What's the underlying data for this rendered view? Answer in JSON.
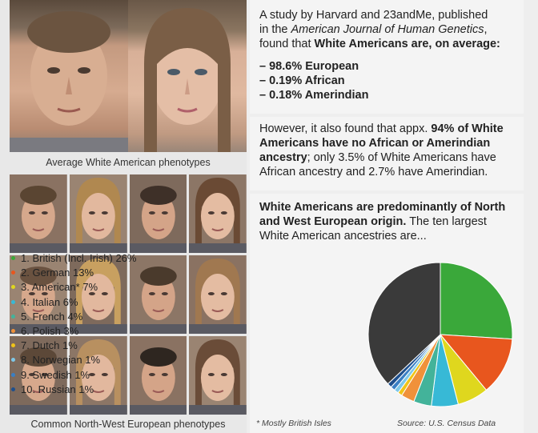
{
  "left": {
    "top_caption": "Average White American phenotypes",
    "bottom_caption": "Common North-West European phenotypes"
  },
  "study": {
    "line1": "A study by Harvard and 23andMe, published",
    "line2_pre": "in the ",
    "line2_journal": "American Journal of Human Genetics",
    "line2_post": ",",
    "line3_pre": "found that ",
    "line3_bold": "White Americans are, on average:",
    "items": [
      "– 98.6% European",
      "– 0.19% African",
      "– 0.18% Amerindian"
    ]
  },
  "ancestry": {
    "line1_pre": "However, it also found that appx. ",
    "line1_bold": "94% of White",
    "line2_bold": "Americans have no African or Amerindian",
    "line3_bold": "ancestry",
    "line3_post": "; only 3.5% of White Americans have",
    "line4": "African ancestry and 2.7% have Amerindian."
  },
  "origin": {
    "line1_bold": "White Americans are predominantly of North",
    "line2_bold": "and West European origin.",
    "line2_post": " The ten largest",
    "line3": "White American ancestries are..."
  },
  "chart_data": {
    "type": "pie",
    "slices": [
      {
        "label": "1. British (Incl. Irish) 26%",
        "value": 26,
        "color": "#3aa83a"
      },
      {
        "label": "2. German 13%",
        "value": 13,
        "color": "#e8561e"
      },
      {
        "label": "3. American* 7%",
        "value": 7,
        "color": "#dfd71e"
      },
      {
        "label": "4. Italian 6%",
        "value": 6,
        "color": "#37b9d6"
      },
      {
        "label": "5. French 4%",
        "value": 4,
        "color": "#43b39a"
      },
      {
        "label": "6. Polish 3%",
        "value": 3,
        "color": "#f0913a"
      },
      {
        "label": "7. Dutch 1%",
        "value": 1,
        "color": "#f0c418"
      },
      {
        "label": "8. Norwegian 1%",
        "value": 1,
        "color": "#7ec8e8"
      },
      {
        "label": "9. Swedish 1%",
        "value": 1,
        "color": "#3a7fc4"
      },
      {
        "label": "10. Russian 1%",
        "value": 1,
        "color": "#1e4f8c"
      },
      {
        "label": "",
        "value": 37,
        "color": "#3a3a3a"
      }
    ]
  },
  "footer": {
    "note": "* Mostly British Isles",
    "source": "Source: U.S. Census Data"
  }
}
